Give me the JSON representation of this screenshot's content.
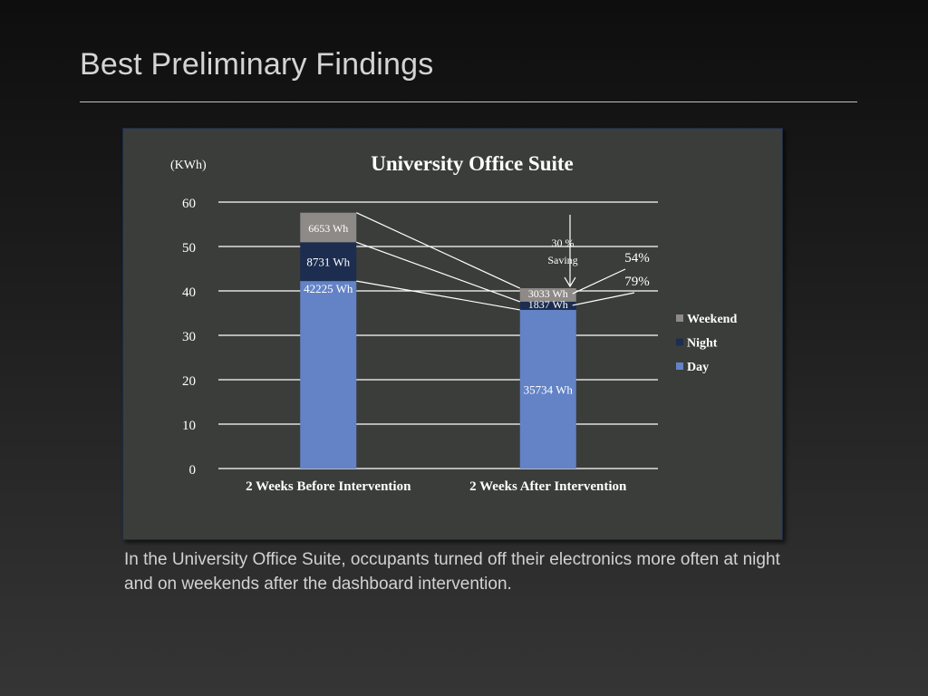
{
  "slide": {
    "title": "Best Preliminary Findings",
    "caption": "In the University Office Suite, occupants turned off their electronics more often at night and on weekends after the dashboard intervention."
  },
  "colors": {
    "day": "#6383c6",
    "night": "#1c2d50",
    "weekend": "#8e8a87",
    "gridline": "#ffffff",
    "text": "#ffffff"
  },
  "chart_data": {
    "type": "bar",
    "stacked": true,
    "title": "University Office Suite",
    "unit_label": "(KWh)",
    "categories": [
      "2 Weeks Before Intervention",
      "2 Weeks After Intervention"
    ],
    "series": [
      {
        "name": "Day",
        "values": [
          42.225,
          35.734
        ],
        "labels": [
          "42225 Wh",
          "35734 Wh"
        ]
      },
      {
        "name": "Night",
        "values": [
          8.731,
          1.837
        ],
        "labels": [
          "8731 Wh",
          "1837 Wh"
        ]
      },
      {
        "name": "Weekend",
        "values": [
          6.653,
          3.033
        ],
        "labels": [
          "6653 Wh",
          "3033 Wh"
        ]
      }
    ],
    "ylim": [
      0,
      60
    ],
    "yticks": [
      0,
      10,
      20,
      30,
      40,
      50,
      60
    ],
    "grid": true,
    "legend_position": "right",
    "annotations": {
      "saving_line1": "30 %",
      "saving_line2": "Saving",
      "weekend_reduction": "54%",
      "night_reduction": "79%"
    }
  }
}
